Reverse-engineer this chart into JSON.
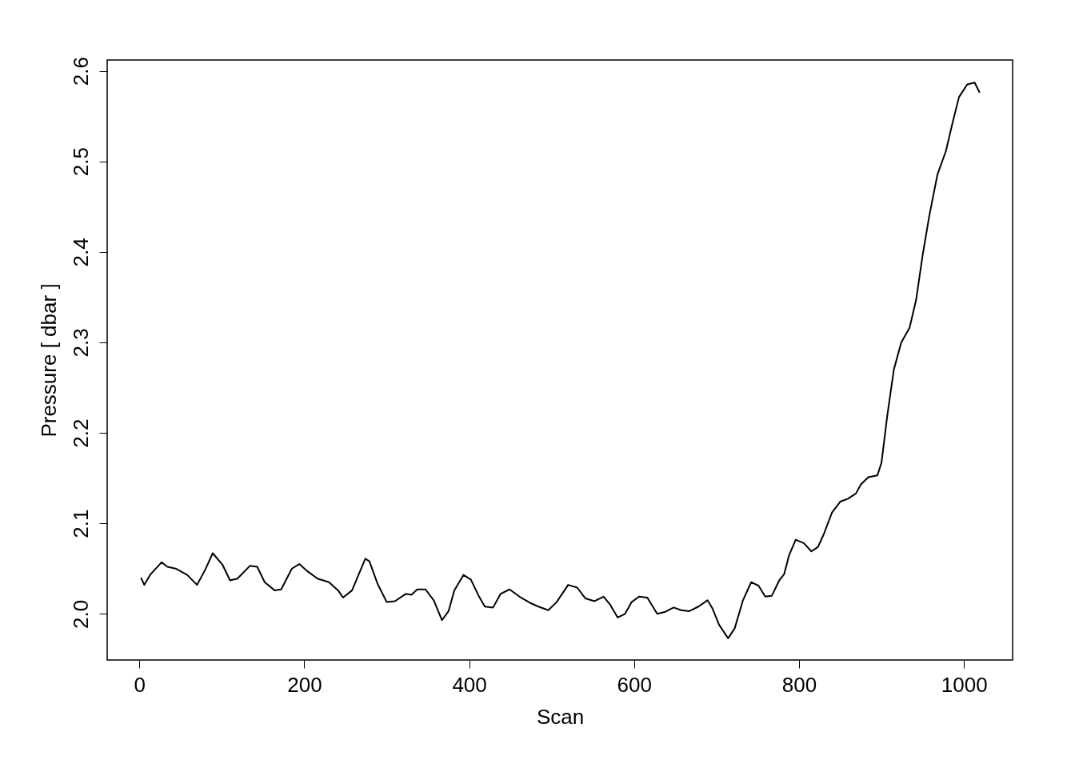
{
  "chart_data": {
    "type": "line",
    "xlabel": "Scan",
    "ylabel": "Pressure [ dbar ]",
    "x": [
      2,
      6,
      13,
      27,
      34,
      44,
      58,
      70,
      80,
      89,
      101,
      110,
      119,
      134,
      143,
      152,
      164,
      172,
      185,
      194,
      204,
      216,
      230,
      241,
      247,
      258,
      274,
      279,
      289,
      300,
      310,
      323,
      330,
      337,
      347,
      357,
      367,
      375,
      382,
      393,
      402,
      412,
      419,
      429,
      438,
      449,
      461,
      474,
      484,
      496,
      506,
      520,
      531,
      541,
      552,
      563,
      571,
      580,
      589,
      597,
      606,
      616,
      628,
      637,
      648,
      657,
      667,
      678,
      689,
      695,
      703,
      714,
      722,
      732,
      742,
      751,
      759,
      767,
      776,
      782,
      788,
      796,
      806,
      815,
      823,
      830,
      840,
      850,
      859,
      869,
      875,
      884,
      895,
      900,
      907,
      915,
      924,
      934,
      942,
      950,
      958,
      968,
      978,
      986,
      994,
      1004,
      1013,
      1019
    ],
    "series": [
      {
        "color": "#000000",
        "values": [
          2.04,
          2.032,
          2.043,
          2.057,
          2.052,
          2.05,
          2.043,
          2.032,
          2.049,
          2.067,
          2.054,
          2.037,
          2.039,
          2.053,
          2.052,
          2.035,
          2.026,
          2.027,
          2.05,
          2.055,
          2.047,
          2.039,
          2.035,
          2.026,
          2.018,
          2.026,
          2.061,
          2.058,
          2.033,
          2.013,
          2.014,
          2.022,
          2.021,
          2.027,
          2.027,
          2.015,
          1.993,
          2.003,
          2.026,
          2.043,
          2.038,
          2.019,
          2.008,
          2.007,
          2.022,
          2.027,
          2.019,
          2.012,
          2.008,
          2.004,
          2.013,
          2.032,
          2.029,
          2.017,
          2.014,
          2.019,
          2.01,
          1.996,
          2.0,
          2.013,
          2.019,
          2.018,
          2.0,
          2.002,
          2.007,
          2.004,
          2.003,
          2.008,
          2.015,
          2.006,
          1.988,
          1.973,
          1.984,
          2.015,
          2.035,
          2.031,
          2.019,
          2.02,
          2.037,
          2.044,
          2.065,
          2.082,
          2.078,
          2.069,
          2.074,
          2.088,
          2.112,
          2.124,
          2.127,
          2.133,
          2.143,
          2.151,
          2.153,
          2.167,
          2.219,
          2.27,
          2.3,
          2.316,
          2.347,
          2.397,
          2.44,
          2.486,
          2.511,
          2.542,
          2.571,
          2.585,
          2.587,
          2.576
        ]
      }
    ],
    "xlim": [
      -39,
      1059
    ],
    "ylim": [
      1.949,
      2.612
    ],
    "xticks": [
      0,
      200,
      400,
      600,
      800,
      {
        "value": 1000,
        "label": "1000"
      }
    ],
    "yticks": [
      {
        "value": 2.0,
        "label": "2.0"
      },
      2.1,
      2.2,
      2.3,
      2.4,
      2.5,
      2.6
    ],
    "grid": false,
    "line_style": "solid",
    "marker": "none"
  }
}
